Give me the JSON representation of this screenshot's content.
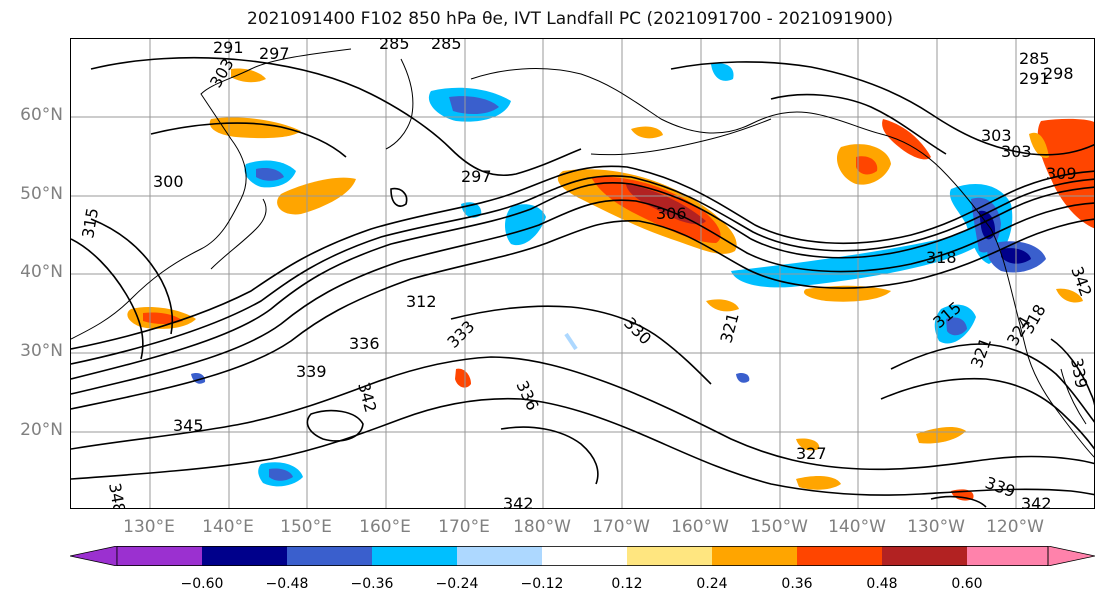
{
  "title": "2021091400 F102 850 hPa θe, IVT Landfall PC (2021091700 - 2021091900)",
  "lat_labels": [
    "60°N",
    "50°N",
    "40°N",
    "30°N",
    "20°N"
  ],
  "lon_labels": [
    "130°E",
    "140°E",
    "150°E",
    "160°E",
    "170°E",
    "180°W",
    "170°W",
    "160°W",
    "150°W",
    "140°W",
    "130°W",
    "120°W"
  ],
  "colorbar": {
    "ticks": [
      "−0.60",
      "−0.48",
      "−0.36",
      "−0.24",
      "−0.12",
      "0.12",
      "0.24",
      "0.36",
      "0.48",
      "0.60"
    ],
    "colors": [
      "#9b30d0",
      "#00008b",
      "#3a5fcd",
      "#00bfff",
      "#add8ff",
      "#ffffff",
      "#ffe680",
      "#ffa500",
      "#ff4500",
      "#b22222",
      "#ff82ab"
    ]
  },
  "contour_labels": [
    "291",
    "297",
    "303",
    "285",
    "285",
    "285",
    "298",
    "291",
    "303",
    "300",
    "315",
    "297",
    "306",
    "303",
    "309",
    "312",
    "318",
    "321",
    "315",
    "336",
    "333",
    "330",
    "321",
    "324",
    "318",
    "339",
    "336",
    "342",
    "345",
    "339",
    "342",
    "342",
    "327",
    "348",
    "339",
    "342"
  ]
}
